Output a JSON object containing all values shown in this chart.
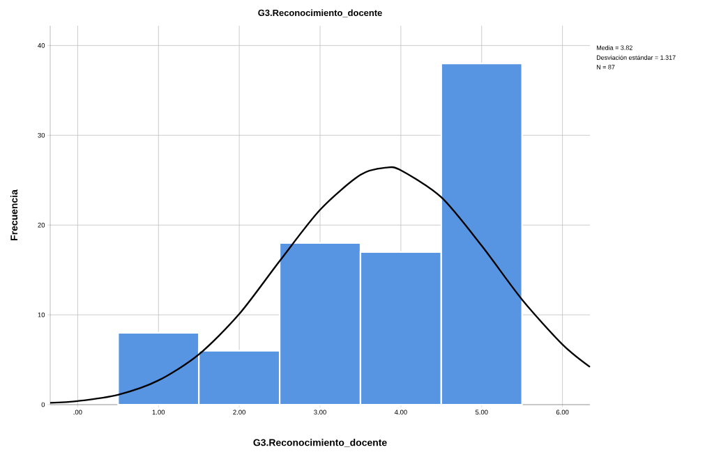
{
  "chart_data": {
    "type": "histogram",
    "title": "G3.Reconocimiento_docente",
    "xlabel": "G3.Reconocimiento_docente",
    "ylabel": "Frecuencia",
    "annotations": [
      "Media = 3.82",
      "Desviación estándar = 1.317",
      "N = 87"
    ],
    "bins": [
      0.5,
      1.5,
      2.5,
      3.5,
      4.5,
      5.5
    ],
    "values": [
      8,
      6,
      18,
      17,
      38
    ],
    "color": "#5795e3",
    "series": [
      {
        "type": "line",
        "color": "#000000",
        "x": [
          -0.34,
          0,
          0.5,
          1.0,
          1.5,
          2.0,
          2.5,
          3.0,
          3.5,
          3.82,
          4.0,
          4.5,
          5.0,
          5.5,
          6.0,
          6.34
        ],
        "values": [
          0.2,
          0.4,
          1.1,
          2.7,
          5.6,
          10.1,
          16.0,
          21.7,
          25.6,
          26.4,
          26.1,
          23.1,
          17.7,
          11.7,
          6.7,
          4.2
        ]
      }
    ],
    "xlim": [
      -0.34,
      6.34
    ],
    "ylim": [
      0,
      42.2
    ],
    "xticks": [
      {
        "value": 0,
        "label": ".00"
      },
      {
        "value": 1,
        "label": "1.00"
      },
      {
        "value": 2,
        "label": "2.00"
      },
      {
        "value": 3,
        "label": "3.00"
      },
      {
        "value": 4,
        "label": "4.00"
      },
      {
        "value": 5,
        "label": "5.00"
      },
      {
        "value": 6,
        "label": "6.00"
      }
    ],
    "yticks": [
      0,
      10,
      20,
      30,
      40
    ],
    "grid": true
  }
}
